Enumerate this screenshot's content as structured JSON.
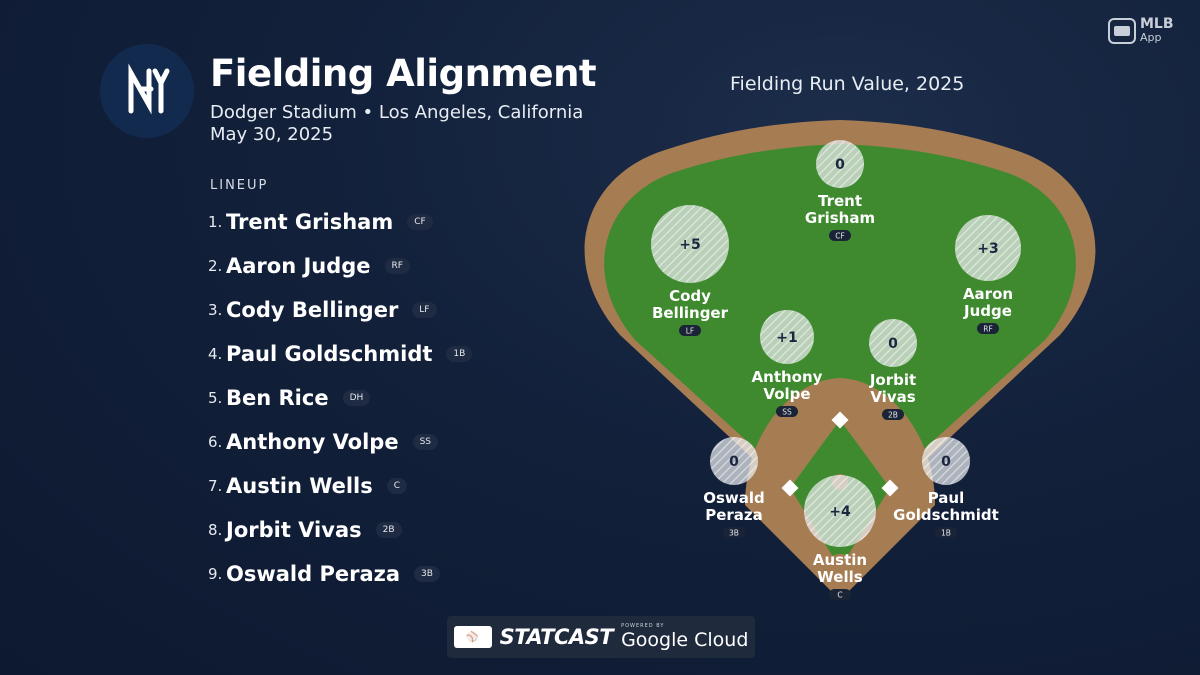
{
  "header": {
    "team_logo_icon": "yankees-ny-logo",
    "title": "Fielding Alignment",
    "venue": "Dodger Stadium • Los Angeles, California",
    "date": "May 30, 2025"
  },
  "lineup": {
    "heading": "LINEUP",
    "players": [
      {
        "order": "1.",
        "name": "Trent Grisham",
        "pos": "CF"
      },
      {
        "order": "2.",
        "name": "Aaron Judge",
        "pos": "RF"
      },
      {
        "order": "3.",
        "name": "Cody Bellinger",
        "pos": "LF"
      },
      {
        "order": "4.",
        "name": "Paul Goldschmidt",
        "pos": "1B"
      },
      {
        "order": "5.",
        "name": "Ben Rice",
        "pos": "DH"
      },
      {
        "order": "6.",
        "name": "Anthony Volpe",
        "pos": "SS"
      },
      {
        "order": "7.",
        "name": "Austin Wells",
        "pos": "C"
      },
      {
        "order": "8.",
        "name": "Jorbit Vivas",
        "pos": "2B"
      },
      {
        "order": "9.",
        "name": "Oswald Peraza",
        "pos": "3B"
      }
    ]
  },
  "field": {
    "title": "Fielding Run Value, 2025",
    "colors": {
      "grass": "#3f8a2e",
      "dirt": "#a67c52",
      "bubble": "#e9ecef"
    },
    "fielders": [
      {
        "pos": "CF",
        "first": "Trent",
        "last": "Grisham",
        "frv": "0"
      },
      {
        "pos": "LF",
        "first": "Cody",
        "last": "Bellinger",
        "frv": "+5"
      },
      {
        "pos": "RF",
        "first": "Aaron",
        "last": "Judge",
        "frv": "+3"
      },
      {
        "pos": "SS",
        "first": "Anthony",
        "last": "Volpe",
        "frv": "+1"
      },
      {
        "pos": "2B",
        "first": "Jorbit",
        "last": "Vivas",
        "frv": "0"
      },
      {
        "pos": "3B",
        "first": "Oswald",
        "last": "Peraza",
        "frv": "0"
      },
      {
        "pos": "1B",
        "first": "Paul",
        "last": "Goldschmidt",
        "frv": "0"
      },
      {
        "pos": "C",
        "first": "Austin",
        "last": "Wells",
        "frv": "+4"
      }
    ]
  },
  "branding": {
    "mlb_app_line1": "MLB",
    "mlb_app_line2": "App",
    "statcast": "STATCAST",
    "powered_by": "POWERED BY",
    "google_cloud": "Google Cloud"
  }
}
